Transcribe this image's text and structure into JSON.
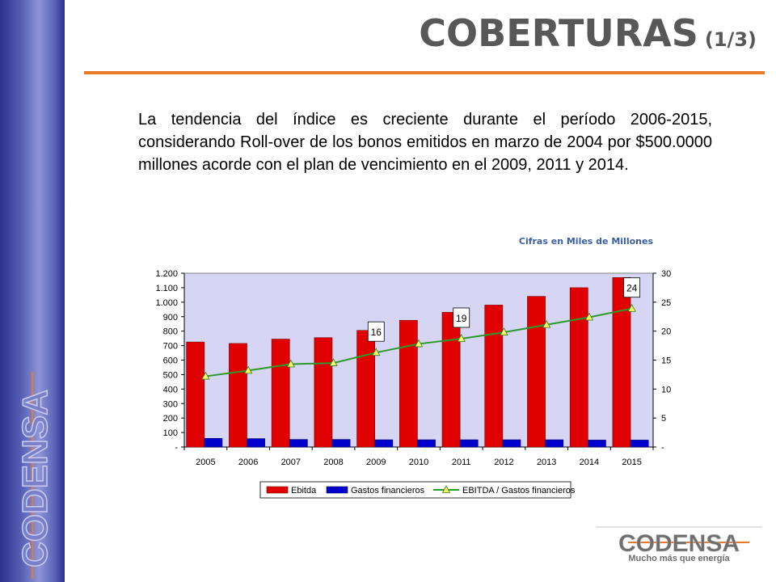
{
  "slide": {
    "title": "COBERTURAS",
    "title_suffix": "(1/3)",
    "intro": "La tendencia del índice es creciente durante el período 2006-2015, considerando Roll-over de los bonos emitidos en marzo de 2004 por $500.0000 millones acorde con el plan de vencimiento en el 2009, 2011 y 2014.",
    "units_note": "Cifras en Miles de Millones",
    "side_logo_text": "CODENSA",
    "brand_name": "CODENSA",
    "brand_tagline": "Mucho más que energía",
    "colors": {
      "title": "#585858",
      "accent_rule": "#e8782a",
      "sidebar": "#4a52a8",
      "units_note": "#3a5fa0"
    }
  },
  "chart_data": {
    "type": "bar",
    "categories": [
      "2005",
      "2006",
      "2007",
      "2008",
      "2009",
      "2010",
      "2011",
      "2012",
      "2013",
      "2014",
      "2015"
    ],
    "series": [
      {
        "name": "Ebitda",
        "type": "bar",
        "axis": "left",
        "color": "#e00000",
        "values": [
          725,
          715,
          745,
          755,
          805,
          875,
          930,
          980,
          1040,
          1100,
          1170
        ]
      },
      {
        "name": "Gastos financieros",
        "type": "bar",
        "axis": "left",
        "color": "#0000cc",
        "values": [
          60,
          58,
          52,
          52,
          50,
          50,
          50,
          50,
          50,
          48,
          48
        ]
      },
      {
        "name": "EBITDA / Gastos financieros",
        "type": "line",
        "axis": "right",
        "color": "#2b9a2b",
        "marker_color": "#ffff66",
        "values": [
          12.2,
          13.2,
          14.3,
          14.5,
          16.3,
          17.8,
          18.7,
          19.8,
          21.1,
          22.4,
          23.9
        ]
      }
    ],
    "annotations": [
      {
        "category": "2009",
        "text": "16"
      },
      {
        "category": "2011",
        "text": "19"
      },
      {
        "category": "2015",
        "text": "24"
      }
    ],
    "ylim": [
      0,
      1200
    ],
    "y2lim": [
      0,
      30
    ],
    "yticks": [
      "-",
      "100",
      "200",
      "300",
      "400",
      "500",
      "600",
      "700",
      "800",
      "900",
      "1.000",
      "1.100",
      "1.200"
    ],
    "y2ticks": [
      "-",
      "5",
      "10",
      "15",
      "20",
      "25",
      "30"
    ],
    "grid": false,
    "plot_background": "#d6d6f4",
    "legend_position": "bottom"
  }
}
